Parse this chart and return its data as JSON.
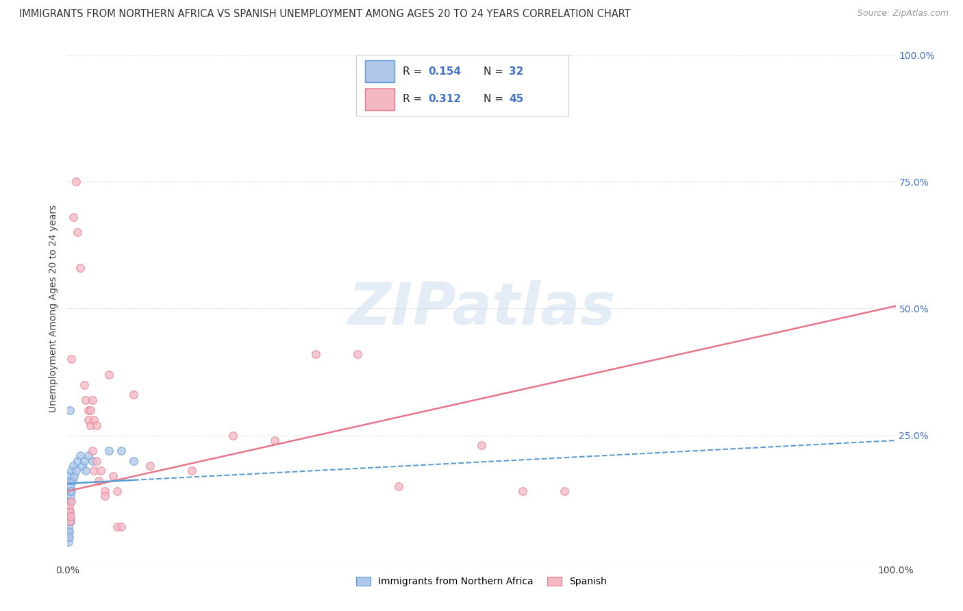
{
  "title": "IMMIGRANTS FROM NORTHERN AFRICA VS SPANISH UNEMPLOYMENT AMONG AGES 20 TO 24 YEARS CORRELATION CHART",
  "source": "Source: ZipAtlas.com",
  "ylabel": "Unemployment Among Ages 20 to 24 years",
  "xlim": [
    0.0,
    1.0
  ],
  "ylim": [
    0.0,
    1.0
  ],
  "xtick_labels": [
    "0.0%",
    "",
    "",
    "",
    "100.0%"
  ],
  "ytick_labels_right": [
    "",
    "25.0%",
    "50.0%",
    "75.0%",
    "100.0%"
  ],
  "background_color": "#ffffff",
  "watermark_text": "ZIPatlas",
  "blue_scatter": [
    [
      0.001,
      0.05
    ],
    [
      0.001,
      0.06
    ],
    [
      0.001,
      0.07
    ],
    [
      0.001,
      0.04
    ],
    [
      0.002,
      0.08
    ],
    [
      0.002,
      0.06
    ],
    [
      0.002,
      0.05
    ],
    [
      0.002,
      0.17
    ],
    [
      0.003,
      0.14
    ],
    [
      0.003,
      0.16
    ],
    [
      0.003,
      0.12
    ],
    [
      0.003,
      0.1
    ],
    [
      0.004,
      0.15
    ],
    [
      0.004,
      0.13
    ],
    [
      0.004,
      0.08
    ],
    [
      0.005,
      0.14
    ],
    [
      0.005,
      0.18
    ],
    [
      0.006,
      0.16
    ],
    [
      0.007,
      0.19
    ],
    [
      0.008,
      0.17
    ],
    [
      0.01,
      0.18
    ],
    [
      0.012,
      0.2
    ],
    [
      0.015,
      0.21
    ],
    [
      0.018,
      0.19
    ],
    [
      0.02,
      0.2
    ],
    [
      0.022,
      0.18
    ],
    [
      0.025,
      0.21
    ],
    [
      0.03,
      0.2
    ],
    [
      0.003,
      0.3
    ],
    [
      0.05,
      0.22
    ],
    [
      0.065,
      0.22
    ],
    [
      0.08,
      0.2
    ]
  ],
  "pink_scatter": [
    [
      0.001,
      0.1
    ],
    [
      0.002,
      0.11
    ],
    [
      0.002,
      0.09
    ],
    [
      0.003,
      0.08
    ],
    [
      0.003,
      0.1
    ],
    [
      0.004,
      0.09
    ],
    [
      0.005,
      0.12
    ],
    [
      0.005,
      0.4
    ],
    [
      0.007,
      0.68
    ],
    [
      0.01,
      0.75
    ],
    [
      0.012,
      0.65
    ],
    [
      0.015,
      0.58
    ],
    [
      0.02,
      0.35
    ],
    [
      0.022,
      0.32
    ],
    [
      0.025,
      0.28
    ],
    [
      0.025,
      0.3
    ],
    [
      0.028,
      0.3
    ],
    [
      0.028,
      0.27
    ],
    [
      0.03,
      0.32
    ],
    [
      0.03,
      0.22
    ],
    [
      0.032,
      0.28
    ],
    [
      0.032,
      0.18
    ],
    [
      0.035,
      0.27
    ],
    [
      0.035,
      0.2
    ],
    [
      0.038,
      0.16
    ],
    [
      0.04,
      0.18
    ],
    [
      0.045,
      0.14
    ],
    [
      0.045,
      0.13
    ],
    [
      0.05,
      0.37
    ],
    [
      0.055,
      0.17
    ],
    [
      0.06,
      0.14
    ],
    [
      0.06,
      0.07
    ],
    [
      0.065,
      0.07
    ],
    [
      0.1,
      0.19
    ],
    [
      0.15,
      0.18
    ],
    [
      0.2,
      0.25
    ],
    [
      0.25,
      0.24
    ],
    [
      0.3,
      0.41
    ],
    [
      0.35,
      0.41
    ],
    [
      0.4,
      0.15
    ],
    [
      0.5,
      0.23
    ],
    [
      0.55,
      0.14
    ],
    [
      0.6,
      0.14
    ],
    [
      0.08,
      0.33
    ]
  ],
  "blue_line_intercept": 0.155,
  "blue_line_slope": 0.085,
  "pink_line_intercept": 0.14,
  "pink_line_slope": 0.365,
  "blue_line_color": "#5b9bd5",
  "blue_scatter_color": "#aec6e8",
  "blue_scatter_edge": "#5b9bd5",
  "pink_line_color": "#e8758a",
  "pink_scatter_color": "#f4b8c4",
  "pink_scatter_edge": "#e8758a",
  "scatter_size": 70,
  "legend_text_color": "#4472c4",
  "legend_label_color": "#222222",
  "title_fontsize": 10.5,
  "source_fontsize": 9,
  "axis_label_fontsize": 10,
  "tick_fontsize": 10,
  "right_tick_color": "#4472c4",
  "grid_color": "#dddddd"
}
